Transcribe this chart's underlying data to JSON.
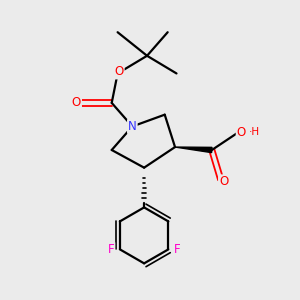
{
  "bg_color": "#ebebeb",
  "atom_colors": {
    "C": "#000000",
    "N": "#3333ff",
    "O": "#ff0000",
    "F": "#ff00cc",
    "H": "#ff0000"
  },
  "bond_color": "#000000",
  "bond_width": 1.6,
  "fig_width": 3.0,
  "fig_height": 3.0,
  "dpi": 100
}
